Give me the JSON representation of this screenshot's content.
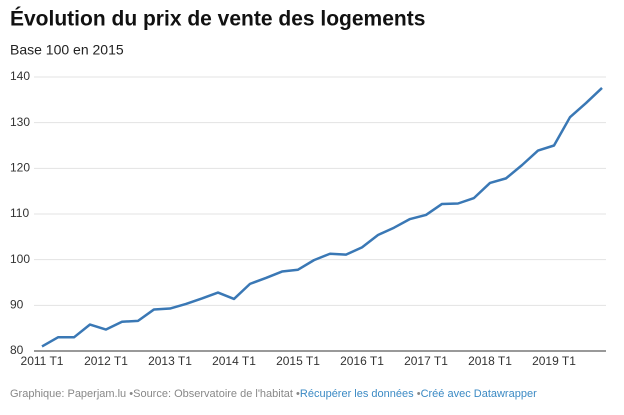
{
  "chart_data": {
    "type": "line",
    "title": "Évolution du prix de vente des logements",
    "subtitle": "Base 100 en 2015",
    "categories": [
      "2011 T1",
      null,
      null,
      null,
      "2012 T1",
      null,
      null,
      null,
      "2013 T1",
      null,
      null,
      null,
      "2014 T1",
      null,
      null,
      null,
      "2015 T1",
      null,
      null,
      null,
      "2016 T1",
      null,
      null,
      null,
      "2017 T1",
      null,
      null,
      null,
      "2018 T1",
      null,
      null,
      null,
      "2019 T1",
      null,
      null,
      null
    ],
    "values": [
      81,
      83,
      83,
      85.8,
      84.7,
      86.4,
      86.6,
      89.1,
      89.3,
      90.3,
      91.5,
      92.8,
      91.4,
      94.7,
      96,
      97.4,
      97.8,
      99.9,
      101.3,
      101.1,
      102.7,
      105.4,
      107,
      108.9,
      109.8,
      112.2,
      112.3,
      113.5,
      116.8,
      117.8,
      120.7,
      123.9,
      125,
      131.2,
      134.3,
      137.6
    ],
    "color": "#3a78b5",
    "ylim": [
      80,
      140
    ],
    "yticks": [
      80,
      90,
      100,
      110,
      120,
      130,
      140
    ],
    "grid": true,
    "footer": [
      "Graphique: Paperjam.lu",
      "Source: Observatoire de l'habitat",
      "Récupérer les données",
      "Créé avec Datawrapper"
    ]
  }
}
